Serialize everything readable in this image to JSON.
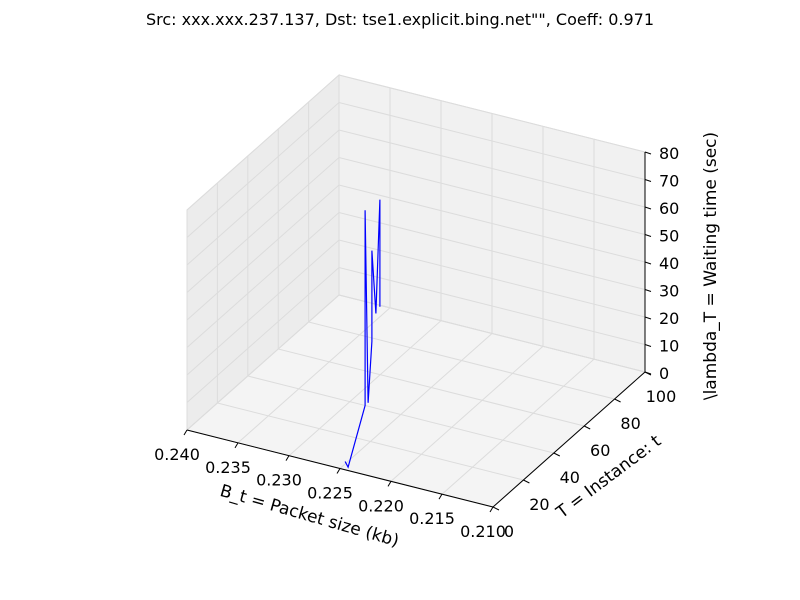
{
  "chart_data": {
    "type": "line",
    "title": "Src: xxx.xxx.237.137, Dst: tse1.explicit.bing.net\"\", Coeff: 0.971",
    "xlabel": "B_t = Packet size (kb)",
    "ylabel": "T = Instance: t",
    "zlabel": "\\lambda_T = Waiting time (sec)",
    "xlim": [
      0.21,
      0.24
    ],
    "ylim": [
      0,
      100
    ],
    "zlim": [
      0,
      80
    ],
    "x_ticks": [
      "0.210",
      "0.215",
      "0.220",
      "0.225",
      "0.230",
      "0.235",
      "0.240"
    ],
    "y_ticks": [
      "0",
      "20",
      "40",
      "60",
      "80",
      "100"
    ],
    "z_ticks": [
      "0",
      "10",
      "20",
      "30",
      "40",
      "50",
      "60",
      "70",
      "80"
    ],
    "grid": true,
    "series": [
      {
        "color": "#0000ff",
        "points": [
          {
            "x": 0.2245,
            "y": 0,
            "z": 3
          },
          {
            "x": 0.2245,
            "y": 2,
            "z": 0
          },
          {
            "x": 0.2285,
            "y": 40,
            "z": 0
          },
          {
            "x": 0.2285,
            "y": 40,
            "z": 71
          },
          {
            "x": 0.2285,
            "y": 42,
            "z": 0
          },
          {
            "x": 0.2335,
            "y": 78,
            "z": 0
          },
          {
            "x": 0.2335,
            "y": 78,
            "z": 33
          },
          {
            "x": 0.2337,
            "y": 82,
            "z": 8
          },
          {
            "x": 0.2342,
            "y": 88,
            "z": 46
          },
          {
            "x": 0.2342,
            "y": 88,
            "z": 7
          }
        ]
      }
    ]
  }
}
